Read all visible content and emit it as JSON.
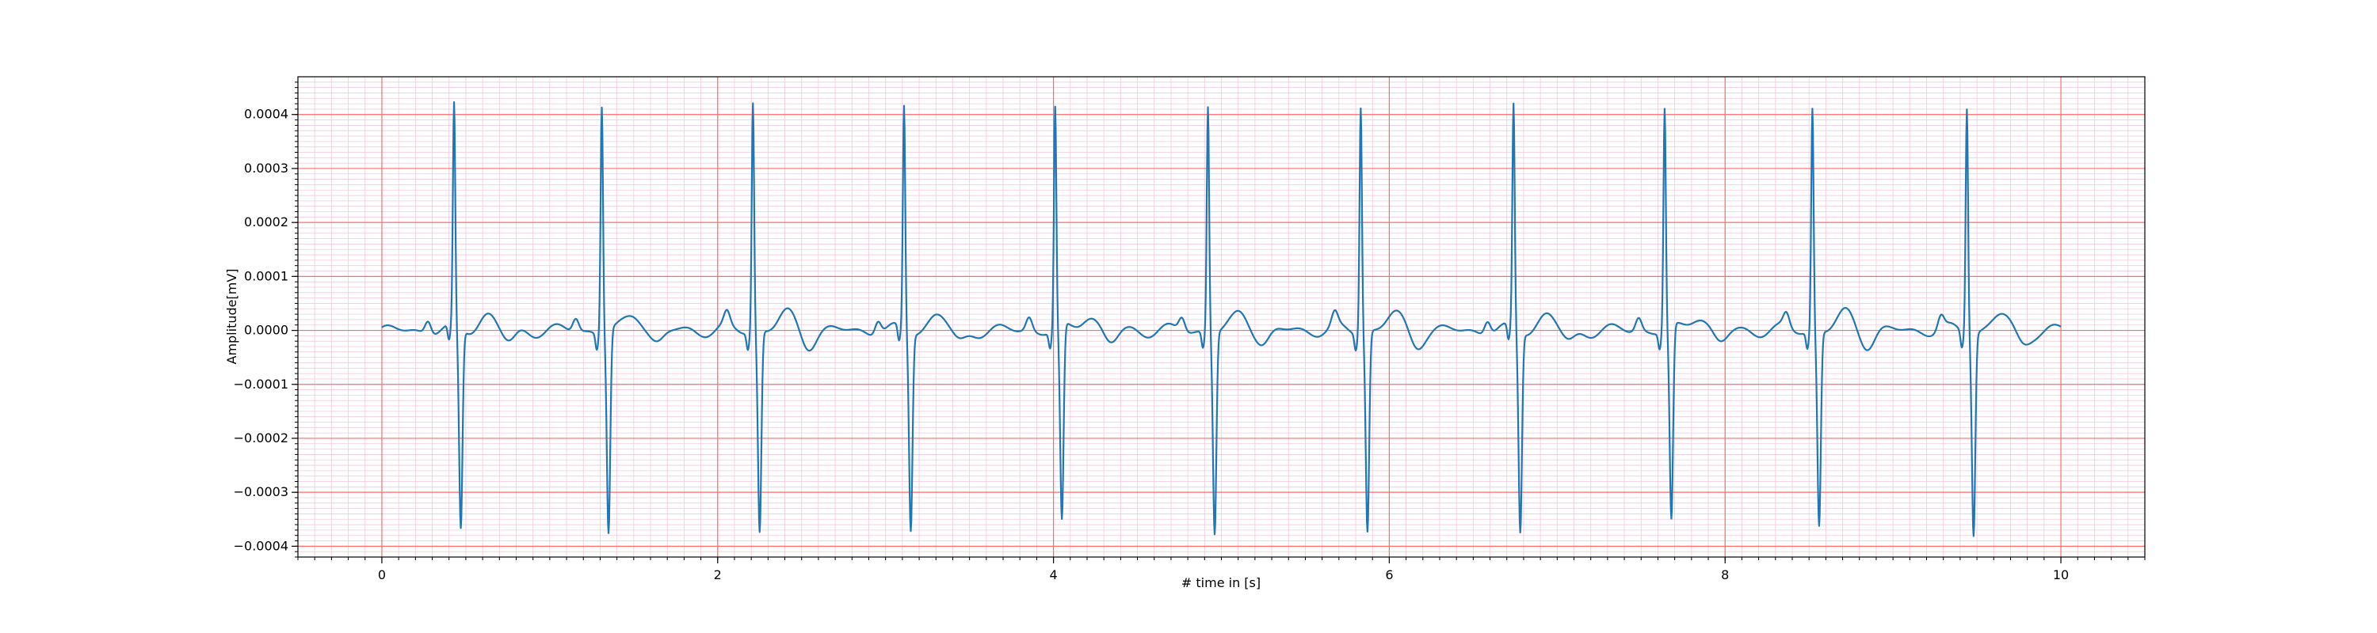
{
  "chart_data": {
    "type": "line",
    "title": "",
    "xlabel": "# time in [s]",
    "ylabel": "Amplitude[mV]",
    "xlim": [
      -0.5,
      10.5
    ],
    "ylim": [
      -0.00042,
      0.00047
    ],
    "xticks": [
      0,
      2,
      4,
      6,
      8,
      10
    ],
    "xtick_labels": [
      "0",
      "2",
      "4",
      "6",
      "8",
      "10"
    ],
    "yticks": [
      -0.0004,
      -0.0003,
      -0.0002,
      -0.0001,
      0.0,
      0.0001,
      0.0002,
      0.0003,
      0.0004
    ],
    "ytick_labels": [
      "−0.0004",
      "−0.0003",
      "−0.0002",
      "−0.0001",
      "0.0000",
      "0.0001",
      "0.0002",
      "0.0003",
      "0.0004"
    ],
    "grid": {
      "major": true,
      "minor": true,
      "major_color": "#ff6b6b",
      "minor_color": "#f3c9dd"
    },
    "line_color": "#1f77b4",
    "series": [
      {
        "beats": [
          {
            "t": 0.43,
            "r_peak": 0.00041,
            "s_trough": -0.00037
          },
          {
            "t": 1.31,
            "r_peak": 0.00042,
            "s_trough": -0.000375
          },
          {
            "t": 2.21,
            "r_peak": 0.000425,
            "s_trough": -0.000372
          },
          {
            "t": 3.11,
            "r_peak": 0.000413,
            "s_trough": -0.000365
          },
          {
            "t": 4.01,
            "r_peak": 0.00041,
            "s_trough": -0.000363
          },
          {
            "t": 4.92,
            "r_peak": 0.000418,
            "s_trough": -0.000373
          },
          {
            "t": 5.83,
            "r_peak": 0.000419,
            "s_trough": -0.00037
          },
          {
            "t": 6.74,
            "r_peak": 0.000413,
            "s_trough": -0.00037
          },
          {
            "t": 7.64,
            "r_peak": 0.00041,
            "s_trough": -0.00036
          },
          {
            "t": 8.52,
            "r_peak": 0.000413,
            "s_trough": -0.00036
          },
          {
            "t": 9.44,
            "r_peak": 0.000418,
            "s_trough": -0.000373
          }
        ],
        "x_start": 0,
        "x_end": 10,
        "baseline": 0.0
      }
    ]
  }
}
